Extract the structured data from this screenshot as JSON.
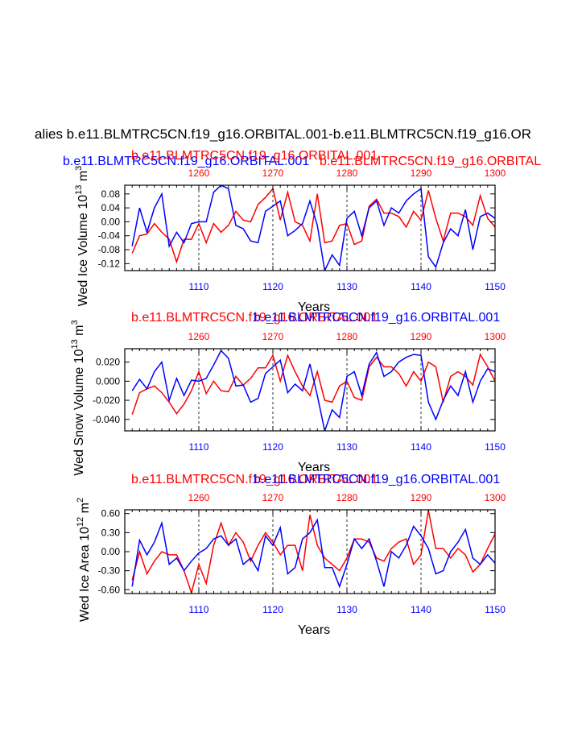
{
  "chart_data": {
    "type": "line",
    "title": "alies b.e11.BLMTRC5CN.f19_g16.ORBITAL.001-b.e11.BLMTRC5CN.f19_g16.OR",
    "series_names": {
      "red": "b.e11.BLMTRC5CN.f19_g16.ORBITAL.001",
      "blue": "b.e11.BLMTRC5CN.f19_g16.ORBITAL.001"
    },
    "top_title_blue": "b.e11.BLMTRC5CN.f19_g16.ORBITAL.001",
    "top_title_red": "b.e11.BLMTRC5CN.f19_g16.ORBITAL",
    "colors": {
      "red": "#ff0000",
      "blue": "#0000ff",
      "axis": "#000000"
    },
    "panels": [
      {
        "ylabel": "Wed Ice Volume 10",
        "ylabel_sup": "13",
        "ylabel_unit": " m",
        "ylabel_unit_sup": "3",
        "xlabel": "Years",
        "ylim": [
          -0.14,
          0.105
        ],
        "yticks": [
          0.08,
          0.04,
          0.0,
          -0.04,
          -0.08,
          -0.12
        ],
        "ytick_labels": [
          "0.08",
          "0.04",
          "0.00",
          "-0.04",
          "-0.08",
          "-0.12"
        ],
        "x_bottom_range": [
          1100,
          1150
        ],
        "x_bottom_ticks": [
          "1110",
          "1120",
          "1130",
          "1140",
          "1150"
        ],
        "x_top_range": [
          1250,
          1300
        ],
        "x_top_ticks": [
          "1260",
          "1270",
          "1280",
          "1290",
          "1300"
        ],
        "blue_values": [
          -0.07,
          0.04,
          -0.03,
          0.04,
          0.08,
          -0.07,
          -0.03,
          -0.06,
          -0.005,
          0.0,
          0.0,
          0.085,
          0.105,
          0.095,
          -0.01,
          -0.02,
          -0.055,
          -0.06,
          0.03,
          0.045,
          0.06,
          -0.04,
          -0.025,
          -0.005,
          0.06,
          -0.01,
          -0.14,
          -0.095,
          -0.125,
          0.01,
          0.03,
          -0.04,
          0.04,
          0.06,
          -0.01,
          0.04,
          0.025,
          0.06,
          0.08,
          0.095,
          -0.1,
          -0.13,
          -0.06,
          -0.02,
          -0.04,
          0.035,
          -0.08,
          0.015,
          0.025,
          0.01
        ],
        "red_values": [
          -0.09,
          -0.04,
          -0.035,
          -0.005,
          -0.03,
          -0.05,
          -0.115,
          -0.05,
          -0.05,
          -0.005,
          -0.06,
          -0.005,
          -0.03,
          -0.01,
          0.03,
          0.005,
          0.0,
          0.05,
          0.07,
          0.095,
          0.005,
          0.085,
          0.0,
          -0.01,
          -0.055,
          0.08,
          -0.06,
          -0.055,
          -0.01,
          -0.005,
          -0.065,
          -0.055,
          0.045,
          0.065,
          0.025,
          0.025,
          0.015,
          -0.015,
          0.03,
          0.005,
          0.09,
          0.01,
          -0.055,
          0.025,
          0.025,
          0.015,
          -0.01,
          0.075,
          0.01,
          -0.015
        ]
      },
      {
        "ylabel": "Wed Snow Volume 10",
        "ylabel_sup": "13",
        "ylabel_unit": " m",
        "ylabel_unit_sup": "3",
        "xlabel": "Years",
        "ylim": [
          -0.052,
          0.034
        ],
        "yticks": [
          0.02,
          0.0,
          -0.02,
          -0.04
        ],
        "ytick_labels": [
          "0.020",
          "0.000",
          "-0.020",
          "-0.040"
        ],
        "x_bottom_range": [
          1100,
          1150
        ],
        "x_bottom_ticks": [
          "1110",
          "1120",
          "1130",
          "1140",
          "1150"
        ],
        "x_top_range": [
          1250,
          1300
        ],
        "x_top_ticks": [
          "1260",
          "1270",
          "1280",
          "1290",
          "1300"
        ],
        "blue_values": [
          -0.01,
          0.002,
          -0.008,
          0.01,
          0.02,
          -0.02,
          0.003,
          -0.015,
          0.001,
          0.0,
          0.003,
          0.017,
          0.032,
          0.024,
          -0.005,
          -0.004,
          -0.022,
          -0.018,
          0.008,
          0.015,
          0.022,
          -0.012,
          -0.003,
          -0.01,
          0.018,
          -0.015,
          -0.052,
          -0.03,
          -0.038,
          0.005,
          0.01,
          -0.015,
          0.018,
          0.03,
          0.005,
          0.01,
          0.02,
          0.025,
          0.028,
          0.027,
          -0.022,
          -0.04,
          -0.02,
          -0.005,
          -0.015,
          0.01,
          -0.022,
          0.0,
          0.013,
          0.01
        ],
        "red_values": [
          -0.035,
          -0.012,
          -0.008,
          -0.005,
          -0.012,
          -0.022,
          -0.034,
          -0.024,
          -0.01,
          0.01,
          -0.013,
          0.0,
          -0.01,
          -0.011,
          0.005,
          -0.004,
          0.003,
          0.014,
          0.014,
          0.027,
          0.0,
          0.027,
          0.01,
          -0.005,
          -0.015,
          0.01,
          -0.02,
          -0.022,
          -0.005,
          0.0,
          -0.017,
          -0.02,
          0.015,
          0.025,
          0.015,
          0.015,
          0.008,
          -0.005,
          0.01,
          0.0,
          0.02,
          0.015,
          -0.022,
          0.005,
          0.01,
          0.005,
          -0.004,
          0.028,
          0.015,
          0.0
        ]
      },
      {
        "ylabel": "Wed Ice Area 10",
        "ylabel_sup": "12",
        "ylabel_unit": " m",
        "ylabel_unit_sup": "2",
        "xlabel": "Years",
        "ylim": [
          -0.66,
          0.66
        ],
        "yticks": [
          0.6,
          0.3,
          0.0,
          -0.3,
          -0.6
        ],
        "ytick_labels": [
          "0.60",
          "0.30",
          "0.00",
          "-0.30",
          "-0.60"
        ],
        "x_bottom_range": [
          1100,
          1150
        ],
        "x_bottom_ticks": [
          "1110",
          "1120",
          "1130",
          "1140",
          "1150"
        ],
        "x_top_range": [
          1250,
          1300
        ],
        "x_top_ticks": [
          "1260",
          "1270",
          "1280",
          "1290",
          "1300"
        ],
        "blue_values": [
          -0.55,
          0.18,
          -0.05,
          0.15,
          0.45,
          -0.2,
          -0.1,
          -0.3,
          -0.15,
          -0.02,
          0.05,
          0.2,
          0.25,
          0.1,
          0.2,
          -0.2,
          -0.1,
          -0.3,
          0.25,
          0.1,
          0.38,
          -0.35,
          -0.25,
          0.2,
          0.3,
          0.5,
          -0.25,
          -0.25,
          -0.55,
          -0.2,
          0.2,
          0.05,
          0.2,
          -0.15,
          -0.55,
          0.0,
          -0.1,
          0.1,
          0.4,
          0.25,
          0.05,
          -0.35,
          -0.3,
          0.0,
          0.15,
          0.35,
          -0.1,
          -0.2,
          -0.05,
          -0.18
        ],
        "red_values": [
          -0.45,
          0.0,
          -0.35,
          -0.15,
          0.0,
          -0.05,
          -0.05,
          -0.3,
          -0.65,
          -0.2,
          -0.5,
          0.1,
          0.45,
          0.1,
          0.3,
          0.15,
          -0.15,
          0.1,
          0.3,
          0.15,
          -0.05,
          0.1,
          0.1,
          -0.3,
          0.58,
          0.1,
          -0.1,
          -0.2,
          -0.3,
          -0.1,
          0.2,
          0.2,
          0.15,
          -0.1,
          -0.15,
          0.05,
          0.15,
          0.2,
          -0.2,
          -0.05,
          0.65,
          0.05,
          0.05,
          -0.1,
          0.05,
          -0.05,
          -0.32,
          -0.2,
          0.05,
          0.28
        ]
      }
    ]
  }
}
